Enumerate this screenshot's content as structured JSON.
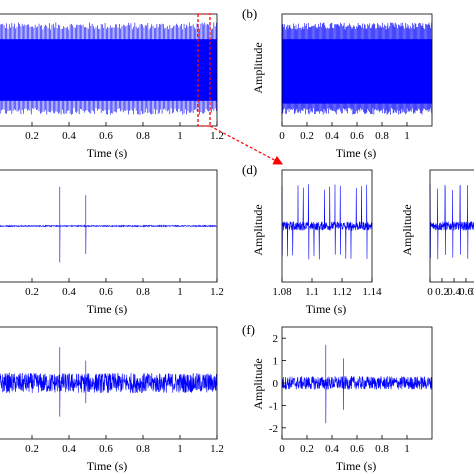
{
  "colors": {
    "signal": "#0000ff",
    "axis": "#000000",
    "annotation": "#ff0000",
    "background": "#ffffff"
  },
  "chart_data": [
    {
      "id": "a",
      "type": "line",
      "panel_label": "",
      "xlabel": "Time (s)",
      "ylabel": "",
      "xlim": [
        0,
        1.2
      ],
      "ylim": [
        -1,
        1
      ],
      "xticks": [
        0.2,
        0.4,
        0.6,
        0.8,
        1,
        1.2
      ],
      "xtick_labels": [
        "0.2",
        "0.4",
        "0.6",
        "0.8",
        "1",
        "1.2"
      ],
      "yticks": [],
      "ytick_labels": [],
      "signal": {
        "kind": "dense_impulse_train",
        "band_low": -0.55,
        "band_high": 0.55,
        "spike_peak": 0.85,
        "spike_trough": -0.8,
        "spike_interval_s": 0.0035
      },
      "annotation": {
        "shape": "dashed-rectangle",
        "x_range": [
          1.08,
          1.14
        ],
        "arrow_to": "d"
      }
    },
    {
      "id": "b",
      "type": "line",
      "panel_label": "(b)",
      "xlabel": "Time (s)",
      "ylabel": "Amplitude",
      "xlim": [
        0,
        1.2
      ],
      "ylim": [
        -1,
        1
      ],
      "xticks": [
        0,
        0.2,
        0.4,
        0.6,
        0.8,
        1
      ],
      "xtick_labels": [
        "0",
        "0.2",
        "0.4",
        "0.6",
        "0.8",
        "1"
      ],
      "yticks": [],
      "ytick_labels": [],
      "signal": {
        "kind": "dense_impulse_train",
        "band_low": -0.6,
        "band_high": 0.55,
        "spike_peak": 0.85,
        "spike_trough": -0.8,
        "spike_interval_s": 0.0035
      }
    },
    {
      "id": "c",
      "type": "line",
      "panel_label": "",
      "xlabel": "Time (s)",
      "ylabel": "",
      "xlim": [
        0,
        1.2
      ],
      "ylim": [
        -1,
        1
      ],
      "xticks": [
        0.2,
        0.4,
        0.6,
        0.8,
        1,
        1.2
      ],
      "xtick_labels": [
        "0.2",
        "0.4",
        "0.6",
        "0.8",
        "1",
        "1.2"
      ],
      "yticks": [],
      "ytick_labels": [],
      "signal": {
        "kind": "transients_on_flat",
        "noise_amplitude": 0.01,
        "transients": [
          {
            "t": 0.35,
            "peak": 0.7,
            "trough": -0.65
          },
          {
            "t": 0.49,
            "peak": 0.55,
            "trough": -0.5
          }
        ]
      }
    },
    {
      "id": "d",
      "type": "line",
      "panel_label": "(d)",
      "xlabel": "Time (s)",
      "ylabel": "Amplitude",
      "xlim": [
        1.08,
        1.14
      ],
      "ylim": [
        -1,
        1
      ],
      "xticks": [
        1.08,
        1.1,
        1.12,
        1.14
      ],
      "xtick_labels": [
        "1.08",
        "1.1",
        "1.12",
        "1.14"
      ],
      "yticks": [],
      "ytick_labels": [],
      "signal": {
        "kind": "zoomed_impulse_train",
        "spike_count": 17,
        "spike_peak": 0.75,
        "spike_trough": -0.6,
        "noise_amplitude": 0.08
      }
    },
    {
      "id": "d2",
      "type": "line",
      "panel_label": "",
      "xlabel": "",
      "ylabel": "Amplitude",
      "xlim": [
        0,
        1
      ],
      "ylim": [
        -1,
        1
      ],
      "xticks": [
        0,
        0.2,
        0.4,
        0.6,
        0.8
      ],
      "xtick_labels": [
        "0",
        "0.2",
        "0.4",
        "0.6",
        "0.8"
      ],
      "yticks": [],
      "ytick_labels": [],
      "signal": {
        "kind": "zoomed_impulse_train",
        "spike_count": 8,
        "spike_peak": 0.75,
        "spike_trough": -0.6,
        "noise_amplitude": 0.08
      }
    },
    {
      "id": "e",
      "type": "line",
      "panel_label": "",
      "xlabel": "Time (s)",
      "ylabel": "",
      "xlim": [
        0,
        1.2
      ],
      "ylim": [
        -2.5,
        2.5
      ],
      "xticks": [
        0.2,
        0.4,
        0.6,
        0.8,
        1,
        1.2
      ],
      "xtick_labels": [
        "0.2",
        "0.4",
        "0.6",
        "0.8",
        "1",
        "1.2"
      ],
      "yticks": [],
      "ytick_labels": [],
      "signal": {
        "kind": "noise_with_transients",
        "noise_amplitude": 0.45,
        "transients": [
          {
            "t": 0.35,
            "peak": 1.6,
            "trough": -1.5
          },
          {
            "t": 0.49,
            "peak": 1.0,
            "trough": -0.9
          }
        ]
      }
    },
    {
      "id": "f",
      "type": "line",
      "panel_label": "(f)",
      "xlabel": "Time (s)",
      "ylabel": "Amplitude",
      "xlim": [
        0,
        1.2
      ],
      "ylim": [
        -2.5,
        2.5
      ],
      "xticks": [
        0,
        0.2,
        0.4,
        0.6,
        0.8,
        1
      ],
      "xtick_labels": [
        "0",
        "0.2",
        "0.4",
        "0.6",
        "0.8",
        "1"
      ],
      "yticks": [
        -2,
        -1,
        0,
        1,
        2
      ],
      "ytick_labels": [
        "-2",
        "-1",
        "0",
        "1",
        "2"
      ],
      "signal": {
        "kind": "noise_with_transients",
        "noise_amplitude": 0.3,
        "transients": [
          {
            "t": 0.35,
            "peak": 1.7,
            "trough": -1.8
          },
          {
            "t": 0.49,
            "peak": 1.1,
            "trough": -1.2
          }
        ]
      }
    }
  ]
}
